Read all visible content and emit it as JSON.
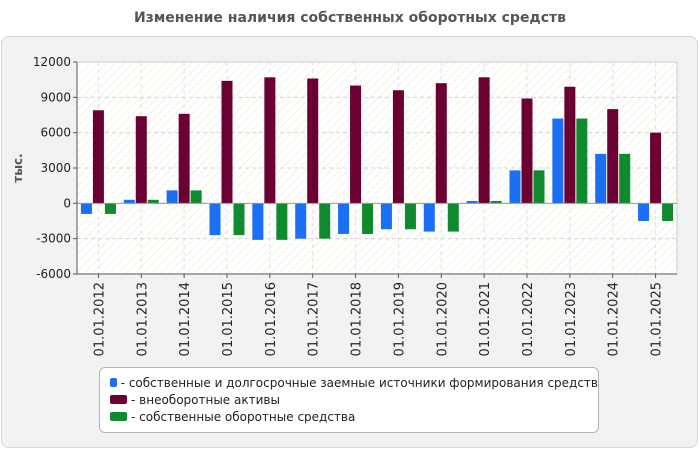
{
  "chart_data": {
    "type": "bar",
    "title": "Изменение наличия собственных оборотных средств",
    "ylabel": "тыс.",
    "xlabel": "",
    "ylim": [
      -6000,
      12000
    ],
    "yticks": [
      -6000,
      -3000,
      0,
      3000,
      6000,
      9000,
      12000
    ],
    "grid": true,
    "legend_position": "bottom",
    "categories": [
      "01.01.2012",
      "01.01.2013",
      "01.01.2014",
      "01.01.2015",
      "01.01.2016",
      "01.01.2017",
      "01.01.2018",
      "01.01.2019",
      "01.01.2020",
      "01.01.2021",
      "01.01.2022",
      "01.01.2023",
      "01.01.2024",
      "01.01.2025"
    ],
    "series": [
      {
        "name": "- собственные и долгосрочные заемные источники формирования средств",
        "color": "#1a6ff2",
        "values": [
          -900,
          300,
          1100,
          -2700,
          -3100,
          -3000,
          -2600,
          -2200,
          -2400,
          200,
          2800,
          7200,
          4200,
          -1500
        ]
      },
      {
        "name": "- внеоборотные активы",
        "color": "#6b0033",
        "values": [
          7900,
          7400,
          7600,
          10400,
          10700,
          10600,
          10000,
          9600,
          10200,
          10700,
          8900,
          9900,
          8000,
          6000
        ]
      },
      {
        "name": "- собственные оборотные средства",
        "color": "#108a2e",
        "values": [
          -900,
          300,
          1100,
          -2700,
          -3100,
          -3000,
          -2600,
          -2200,
          -2400,
          200,
          2800,
          7200,
          4200,
          -1500
        ]
      }
    ]
  }
}
